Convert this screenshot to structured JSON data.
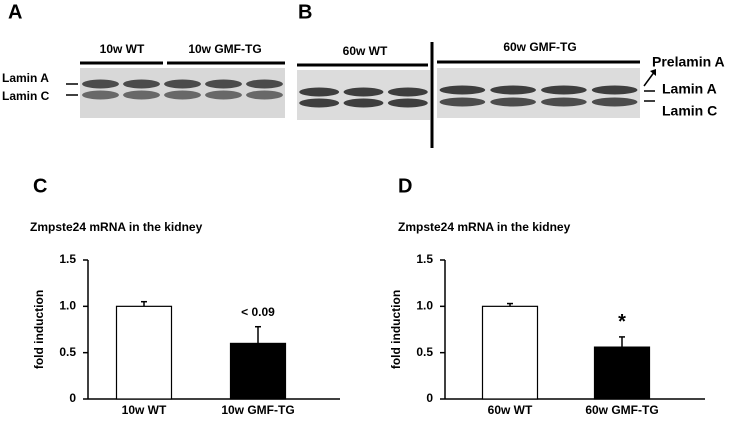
{
  "blots": [
    {
      "panel": "A",
      "groups": [
        "10w WT",
        "10w GMF-TG"
      ],
      "left_labels": [
        "Lamin A",
        "Lamin C"
      ]
    },
    {
      "panel": "B",
      "groups": [
        "60w WT",
        "60w GMF-TG"
      ],
      "right_labels": [
        "Prelamin A",
        "Lamin A",
        "Lamin C"
      ]
    }
  ],
  "chart_data": [
    {
      "type": "bar",
      "panel": "C",
      "title": "Zmpste24 mRNA in the kidney",
      "y_label": "fold induction",
      "categories": [
        "10w WT",
        "10w GMF-TG"
      ],
      "values": [
        1.0,
        0.6
      ],
      "errors": [
        0.05,
        0.18
      ],
      "colors": [
        "#ffffff",
        "#000000"
      ],
      "annotations": [
        null,
        "< 0.09"
      ],
      "ylim": [
        0,
        1.5
      ],
      "yticks": [
        0,
        0.5,
        {
          "value": 1,
          "label": "1.0"
        },
        1.5
      ]
    },
    {
      "type": "bar",
      "panel": "D",
      "title": "Zmpste24 mRNA in the kidney",
      "y_label": "fold induction",
      "categories": [
        "60w WT",
        "60w GMF-TG"
      ],
      "values": [
        1.0,
        0.56
      ],
      "errors": [
        0.03,
        0.11
      ],
      "colors": [
        "#ffffff",
        "#000000"
      ],
      "annotations": [
        null,
        "*"
      ],
      "ylim": [
        0,
        1.5
      ],
      "yticks": [
        0,
        0.5,
        {
          "value": 1,
          "label": "1.0"
        },
        1.5
      ]
    }
  ]
}
